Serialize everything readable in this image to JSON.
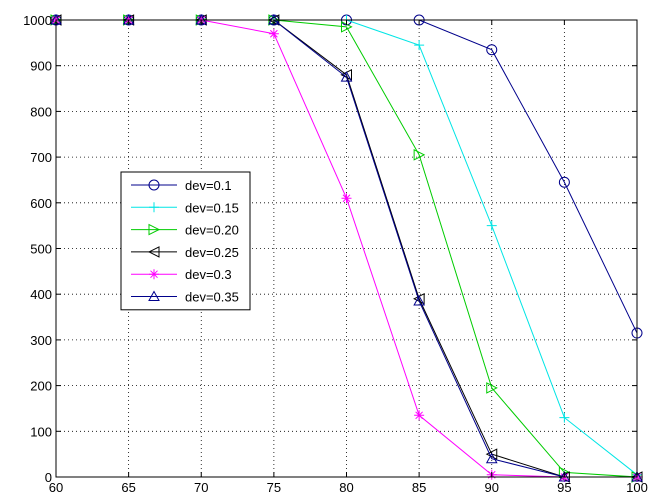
{
  "chart_data": {
    "type": "line",
    "title": "",
    "xlabel": "",
    "ylabel": "",
    "xlim": [
      60,
      100
    ],
    "ylim": [
      0,
      1000
    ],
    "xticks": [
      60,
      65,
      70,
      75,
      80,
      85,
      90,
      95,
      100
    ],
    "yticks": [
      0,
      100,
      200,
      300,
      400,
      500,
      600,
      700,
      800,
      900,
      1000
    ],
    "grid": true,
    "legend_position": "middle-left",
    "x": [
      60,
      65,
      70,
      75,
      80,
      85,
      90,
      95,
      100
    ],
    "series": [
      {
        "name": "dev=0.1",
        "color": "#00008B",
        "marker": "circle",
        "values": [
          1000,
          1000,
          1000,
          1000,
          1000,
          1000,
          935,
          645,
          315
        ]
      },
      {
        "name": "dev=0.15",
        "color": "#00E5E5",
        "marker": "plus",
        "values": [
          1000,
          1000,
          1000,
          1000,
          1000,
          945,
          550,
          130,
          5
        ]
      },
      {
        "name": "dev=0.20",
        "color": "#00CC00",
        "marker": "triangle-right",
        "values": [
          1000,
          1000,
          1000,
          1000,
          985,
          705,
          195,
          10,
          0
        ]
      },
      {
        "name": "dev=0.25",
        "color": "#000000",
        "marker": "triangle-left",
        "values": [
          1000,
          1000,
          1000,
          1000,
          880,
          390,
          50,
          0,
          0
        ]
      },
      {
        "name": "dev=0.3",
        "color": "#FF00FF",
        "marker": "star",
        "values": [
          1000,
          1000,
          1000,
          970,
          610,
          135,
          5,
          0,
          0
        ]
      },
      {
        "name": "dev=0.35",
        "color": "#00008B",
        "marker": "triangle-up",
        "values": [
          1000,
          1000,
          1000,
          1000,
          875,
          385,
          40,
          0,
          0
        ]
      }
    ]
  }
}
